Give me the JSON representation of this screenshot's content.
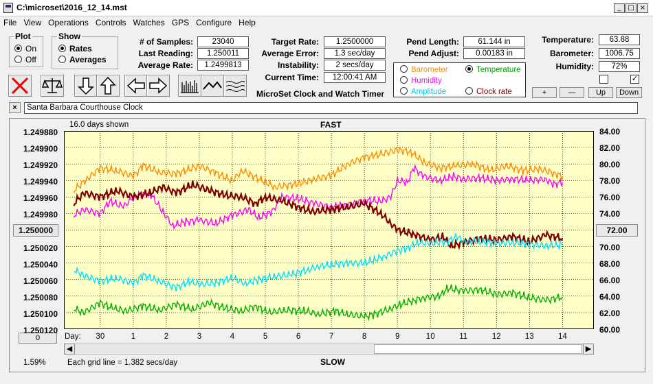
{
  "window": {
    "title": "C:\\microset\\2016_12_14.mst"
  },
  "menu": [
    "File",
    "View",
    "Operations",
    "Controls",
    "Watches",
    "GPS",
    "Configure",
    "Help"
  ],
  "plot": {
    "label": "Plot",
    "on": "On",
    "off": "Off"
  },
  "show": {
    "label": "Show",
    "rates": "Rates",
    "averages": "Averages"
  },
  "stats": {
    "samples_label": "# of Samples:",
    "samples": "23040",
    "last_label": "Last Reading:",
    "last": "1.250011",
    "avg_label": "Average Rate:",
    "avg": "1.2499813"
  },
  "target": {
    "rate_label": "Target Rate:",
    "rate": "1.2500000",
    "err_label": "Average Error:",
    "err": "1.3 sec/day",
    "inst_label": "Instability:",
    "inst": "2 secs/day",
    "time_label": "Current Time:",
    "time": "12:00:41 AM"
  },
  "app_name": "MicroSet Clock and Watch Timer",
  "pend": {
    "length_label": "Pend Length:",
    "length": "61.144 in",
    "adjust_label": "Pend Adjust:",
    "adjust": "0.00183 in"
  },
  "sensors": {
    "barometer": "Barometer",
    "humidity": "Humidity",
    "amplitude": "Amplitude",
    "temperature": "Temperature",
    "clockrate": "Clock rate"
  },
  "env": {
    "temp_label": "Temperature:",
    "temp": "63.88",
    "baro_label": "Barometer:",
    "baro": "1006.75",
    "hum_label": "Humidity:",
    "hum": "72%"
  },
  "adj": {
    "plus": "+",
    "minus": "—",
    "up": "Up",
    "down": "Down"
  },
  "clock_name": "Santa Barbara Courthouse Clock",
  "close_label": "×",
  "chart_head": {
    "days_shown": "16.0 days shown",
    "fast": "FAST",
    "slow": "SLOW",
    "grid": "Each grid line = 1.382 secs/day",
    "pct": "1.59%",
    "zero": "0",
    "day_label": "Day:",
    "ref_left": "1.250000",
    "ref_right": "72.00"
  },
  "colors": {
    "plot_bg": "#ffffc8",
    "temperature": "#00b000",
    "humidity": "#ff00ff",
    "barometer": "#ff8c00",
    "amplitude": "#00e0ff",
    "rate": "#800000"
  },
  "chart_data": {
    "type": "line",
    "x_ticks": [
      "30",
      "1",
      "2",
      "3",
      "4",
      "5",
      "6",
      "7",
      "8",
      "9",
      "10",
      "11",
      "12",
      "13",
      "14"
    ],
    "y_left_ticks": [
      "1.249880",
      "1.249900",
      "1.249920",
      "1.249940",
      "1.249960",
      "1.249980",
      "1.250000",
      "1.250020",
      "1.250040",
      "1.250060",
      "1.250080",
      "1.250100",
      "1.250120"
    ],
    "y_right_ticks": [
      "84.00",
      "82.00",
      "80.00",
      "78.00",
      "76.00",
      "74.00",
      "72.00",
      "70.00",
      "68.00",
      "66.00",
      "64.00",
      "62.00",
      "60.00"
    ],
    "x_range": [
      29.2,
      15.0
    ],
    "y_right_range": [
      60,
      84
    ],
    "series": [
      {
        "key": "barometer",
        "points": [
          [
            29.2,
            76.8
          ],
          [
            29.6,
            78.2
          ],
          [
            30.0,
            79.5
          ],
          [
            30.5,
            79.2
          ],
          [
            31.0,
            78.5
          ],
          [
            31.3,
            79.8
          ],
          [
            31.8,
            79.0
          ],
          [
            32.3,
            78.8
          ],
          [
            33.0,
            79.8
          ],
          [
            33.5,
            78.9
          ],
          [
            34.0,
            78.0
          ],
          [
            34.3,
            79.2
          ],
          [
            35.0,
            77.8
          ],
          [
            35.3,
            77.2
          ],
          [
            36.0,
            77.6
          ],
          [
            36.5,
            78.2
          ],
          [
            37.0,
            78.6
          ],
          [
            37.5,
            80.0
          ],
          [
            38.0,
            80.8
          ],
          [
            38.3,
            81.0
          ],
          [
            39.0,
            81.7
          ],
          [
            39.4,
            81.5
          ],
          [
            39.8,
            80.2
          ],
          [
            40.3,
            79.5
          ],
          [
            40.8,
            79.8
          ],
          [
            41.3,
            80.0
          ],
          [
            41.8,
            79.2
          ],
          [
            42.3,
            79.8
          ],
          [
            42.8,
            79.2
          ],
          [
            43.3,
            79.4
          ],
          [
            43.8,
            78.8
          ],
          [
            44.0,
            78.5
          ]
        ]
      },
      {
        "key": "humidity",
        "points": [
          [
            29.2,
            73.8
          ],
          [
            29.5,
            74.5
          ],
          [
            30.0,
            74.0
          ],
          [
            30.3,
            75.5
          ],
          [
            30.7,
            74.8
          ],
          [
            31.0,
            76.0
          ],
          [
            31.5,
            76.5
          ],
          [
            31.9,
            74.2
          ],
          [
            32.2,
            72.5
          ],
          [
            32.6,
            73.0
          ],
          [
            33.0,
            73.2
          ],
          [
            33.5,
            72.8
          ],
          [
            34.0,
            73.8
          ],
          [
            34.5,
            74.5
          ],
          [
            34.8,
            73.5
          ],
          [
            35.2,
            74.2
          ],
          [
            35.5,
            76.0
          ],
          [
            36.0,
            75.8
          ],
          [
            36.5,
            75.2
          ],
          [
            37.0,
            74.8
          ],
          [
            37.5,
            75.0
          ],
          [
            38.0,
            75.6
          ],
          [
            38.5,
            75.5
          ],
          [
            38.8,
            76.0
          ],
          [
            39.0,
            78.0
          ],
          [
            39.3,
            77.8
          ],
          [
            39.5,
            79.5
          ],
          [
            39.8,
            78.5
          ],
          [
            40.3,
            78.0
          ],
          [
            40.7,
            78.5
          ],
          [
            41.0,
            78.2
          ],
          [
            41.5,
            78.3
          ],
          [
            42.0,
            78.0
          ],
          [
            42.5,
            78.2
          ],
          [
            43.0,
            78.0
          ],
          [
            43.5,
            78.2
          ],
          [
            43.7,
            77.5
          ],
          [
            44.0,
            77.8
          ]
        ]
      },
      {
        "key": "rate",
        "points": [
          [
            29.2,
            75.2
          ],
          [
            29.5,
            76.5
          ],
          [
            30.0,
            76.0
          ],
          [
            30.5,
            76.8
          ],
          [
            31.0,
            76.0
          ],
          [
            31.5,
            76.5
          ],
          [
            31.9,
            77.2
          ],
          [
            32.3,
            76.5
          ],
          [
            32.8,
            77.5
          ],
          [
            33.3,
            76.8
          ],
          [
            33.8,
            76.2
          ],
          [
            34.3,
            76.0
          ],
          [
            34.7,
            75.2
          ],
          [
            35.0,
            76.0
          ],
          [
            35.5,
            75.5
          ],
          [
            36.0,
            74.8
          ],
          [
            36.4,
            74.2
          ],
          [
            37.0,
            74.5
          ],
          [
            37.5,
            74.8
          ],
          [
            38.0,
            75.2
          ],
          [
            38.5,
            74.0
          ],
          [
            38.8,
            72.8
          ],
          [
            39.0,
            72.0
          ],
          [
            39.5,
            71.5
          ],
          [
            40.0,
            70.8
          ],
          [
            40.4,
            71.2
          ],
          [
            40.6,
            70.0
          ],
          [
            41.0,
            70.5
          ],
          [
            41.5,
            71.0
          ],
          [
            42.0,
            70.8
          ],
          [
            42.5,
            71.2
          ],
          [
            43.0,
            70.6
          ],
          [
            43.5,
            71.4
          ],
          [
            44.0,
            71.0
          ]
        ]
      },
      {
        "key": "amplitude",
        "points": [
          [
            29.2,
            67.2
          ],
          [
            29.5,
            66.5
          ],
          [
            30.0,
            65.8
          ],
          [
            30.5,
            66.2
          ],
          [
            31.0,
            65.5
          ],
          [
            31.3,
            66.5
          ],
          [
            31.8,
            65.8
          ],
          [
            32.3,
            65.0
          ],
          [
            32.7,
            65.8
          ],
          [
            33.0,
            65.4
          ],
          [
            33.5,
            65.6
          ],
          [
            34.0,
            66.2
          ],
          [
            34.4,
            65.5
          ],
          [
            34.8,
            66.0
          ],
          [
            35.3,
            66.4
          ],
          [
            35.8,
            66.6
          ],
          [
            36.3,
            67.2
          ],
          [
            36.6,
            67.6
          ],
          [
            37.0,
            67.8
          ],
          [
            37.5,
            68.0
          ],
          [
            38.0,
            68.0
          ],
          [
            38.3,
            68.4
          ],
          [
            38.6,
            68.8
          ],
          [
            39.0,
            69.5
          ],
          [
            39.3,
            69.8
          ],
          [
            39.6,
            70.5
          ],
          [
            40.0,
            70.4
          ],
          [
            40.5,
            70.6
          ],
          [
            40.8,
            71.2
          ],
          [
            41.0,
            70.6
          ],
          [
            41.5,
            70.6
          ],
          [
            42.0,
            70.4
          ],
          [
            42.5,
            70.5
          ],
          [
            43.0,
            70.3
          ],
          [
            43.5,
            70.1
          ],
          [
            44.0,
            70.2
          ]
        ]
      },
      {
        "key": "temperature",
        "points": [
          [
            29.2,
            62.5
          ],
          [
            29.5,
            62.0
          ],
          [
            30.0,
            63.2
          ],
          [
            30.4,
            62.5
          ],
          [
            30.8,
            62.2
          ],
          [
            31.3,
            62.8
          ],
          [
            31.8,
            62.3
          ],
          [
            32.3,
            63.0
          ],
          [
            32.8,
            62.4
          ],
          [
            33.3,
            63.2
          ],
          [
            33.8,
            62.5
          ],
          [
            34.3,
            62.2
          ],
          [
            34.7,
            62.8
          ],
          [
            35.1,
            62.0
          ],
          [
            35.6,
            62.3
          ],
          [
            36.2,
            62.2
          ],
          [
            36.6,
            61.8
          ],
          [
            37.1,
            62.2
          ],
          [
            37.5,
            61.8
          ],
          [
            38.0,
            61.5
          ],
          [
            38.3,
            61.8
          ],
          [
            38.8,
            62.5
          ],
          [
            39.1,
            63.0
          ],
          [
            39.5,
            63.5
          ],
          [
            39.8,
            63.8
          ],
          [
            40.3,
            64.0
          ],
          [
            40.5,
            65.0
          ],
          [
            41.0,
            64.6
          ],
          [
            41.5,
            64.8
          ],
          [
            42.0,
            64.2
          ],
          [
            42.5,
            64.4
          ],
          [
            43.0,
            63.8
          ],
          [
            43.5,
            63.5
          ],
          [
            44.0,
            63.9
          ]
        ]
      }
    ]
  }
}
